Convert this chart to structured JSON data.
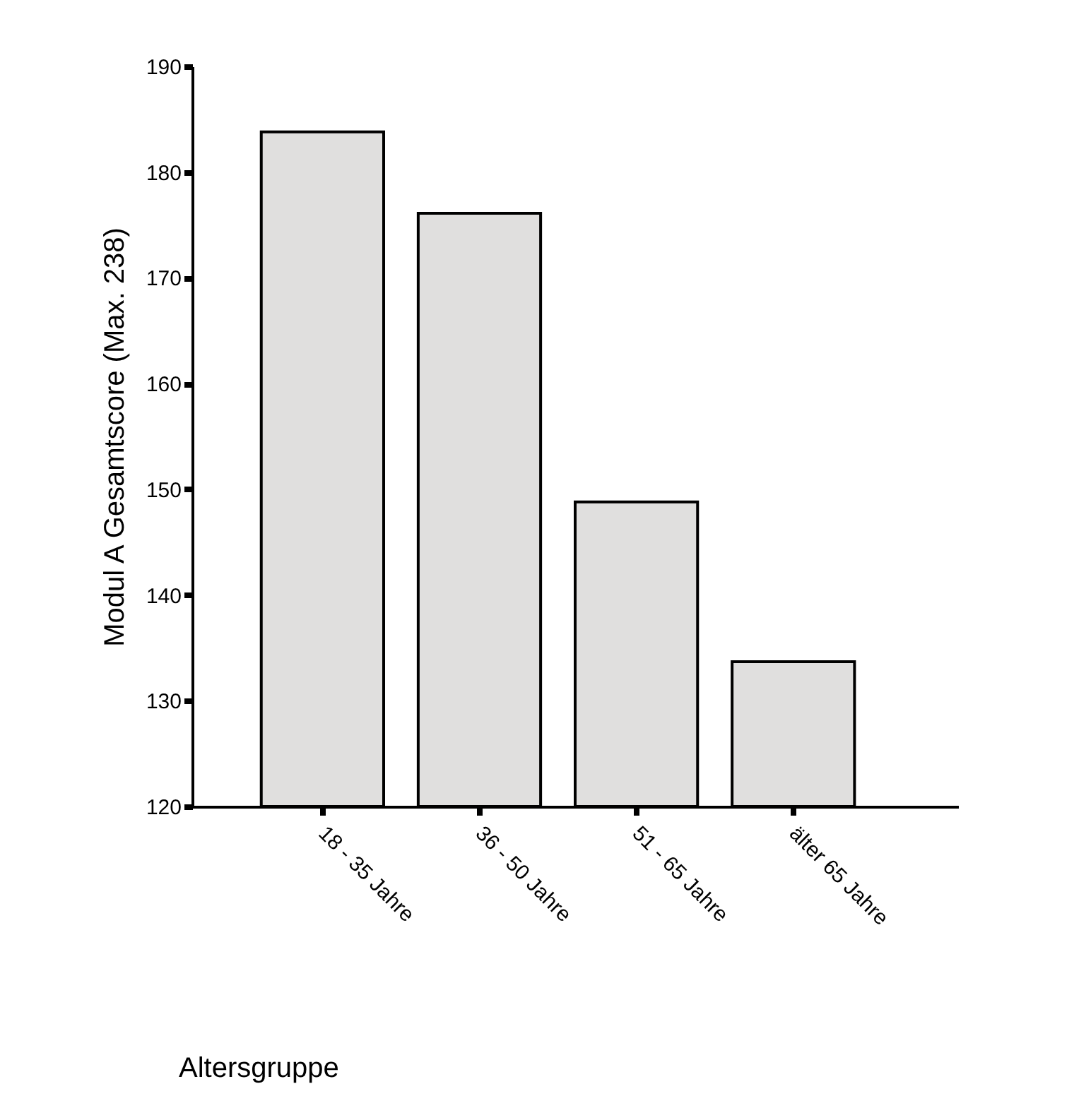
{
  "chart_data": {
    "type": "bar",
    "xlabel": "Altersgruppe",
    "ylabel": "Modul A Gesamtscore (Max. 238)",
    "categories": [
      "18 - 35 Jahre",
      "36 - 50 Jahre",
      "51 - 65 Jahre",
      "älter 65 Jahre"
    ],
    "values": [
      183.8,
      176.1,
      148.8,
      133.7
    ],
    "color": "#e0dfde",
    "ylim": [
      120,
      190
    ],
    "yticks": [
      120,
      130,
      140,
      150,
      160,
      170,
      180,
      190
    ],
    "grid": false
  }
}
